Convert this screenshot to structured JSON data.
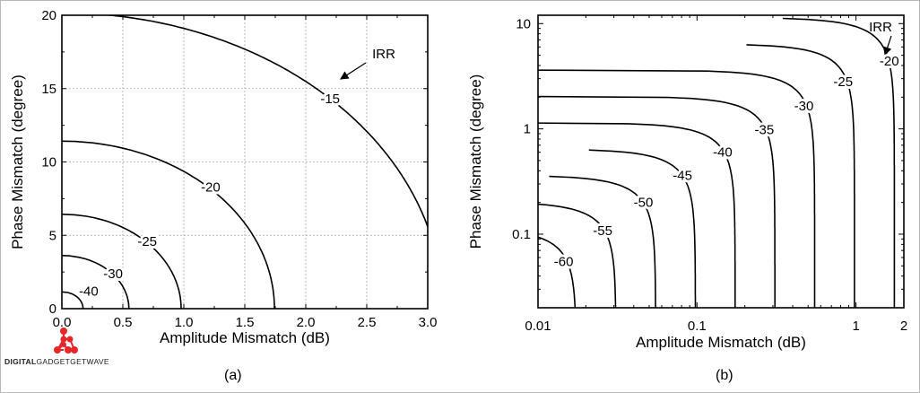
{
  "chart_data": [
    {
      "type": "contour",
      "panel": "(a)",
      "xlabel": "Amplitude Mismatch (dB)",
      "ylabel": "Phase Mismatch (degree)",
      "xlim": [
        0,
        3
      ],
      "ylim": [
        0,
        20
      ],
      "xscale": "linear",
      "yscale": "linear",
      "xticks": [
        "0.0",
        "0.5",
        "1.0",
        "1.5",
        "2.0",
        "2.5",
        "3.0"
      ],
      "yticks": [
        "0",
        "5",
        "10",
        "15",
        "20"
      ],
      "grid": true,
      "levels": [
        -15,
        -20,
        -25,
        -30,
        -40
      ],
      "level_labels": [
        "-15",
        "-20",
        "-25",
        "-30",
        "-40"
      ],
      "annotation": "IRR"
    },
    {
      "type": "contour",
      "panel": "(b)",
      "xlabel": "Amplitude Mismatch (dB)",
      "ylabel": "Phase Mismatch (degree)",
      "xlim": [
        0.01,
        2
      ],
      "ylim": [
        0.02,
        12
      ],
      "xscale": "log",
      "yscale": "log",
      "xticks": [
        "0.01",
        "0.1",
        "1",
        "2"
      ],
      "yticks": [
        "0.1",
        "1",
        "10"
      ],
      "grid": false,
      "levels": [
        -20,
        -25,
        -30,
        -35,
        -40,
        -45,
        -50,
        -55,
        -60
      ],
      "level_labels": [
        "-20",
        "-25",
        "-30",
        "-35",
        "-40",
        "-45",
        "-50",
        "-55",
        "-60"
      ],
      "annotation": "IRR"
    }
  ],
  "captions": {
    "a": "(a)",
    "b": "(b)"
  },
  "watermark": {
    "bold": "DIGITAL",
    "rest": "GADGETGETWAVE",
    "color": "#e8262a"
  },
  "colors": {
    "line": "#000000",
    "grid": "#aaaaaa"
  }
}
